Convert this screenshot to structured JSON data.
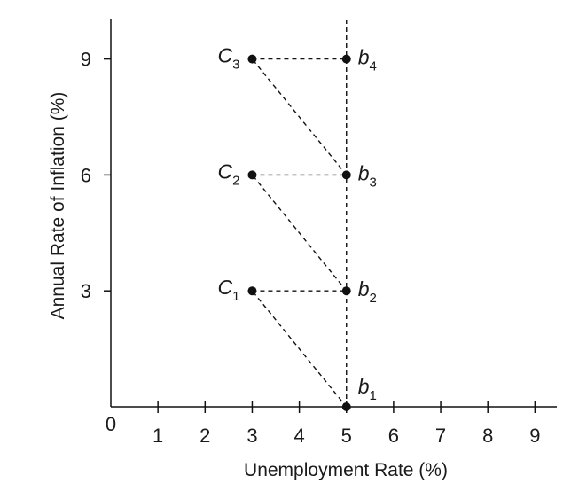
{
  "chart_data": {
    "type": "scatter",
    "xlabel": "Unemployment Rate (%)",
    "ylabel": "Annual Rate of Inflation (%)",
    "xlim": [
      0,
      9.5
    ],
    "ylim": [
      0,
      10
    ],
    "x_ticks": [
      1,
      2,
      3,
      4,
      5,
      6,
      7,
      8,
      9
    ],
    "y_ticks": [
      3,
      6,
      9
    ],
    "origin_label": "0",
    "grid": false,
    "points": [
      {
        "id": "b1",
        "letter": "b",
        "sub": "1",
        "x": 5,
        "y": 0,
        "label_side": "right-up"
      },
      {
        "id": "C1",
        "letter": "C",
        "sub": "1",
        "x": 3,
        "y": 3,
        "label_side": "left"
      },
      {
        "id": "b2",
        "letter": "b",
        "sub": "2",
        "x": 5,
        "y": 3,
        "label_side": "right"
      },
      {
        "id": "C2",
        "letter": "C",
        "sub": "2",
        "x": 3,
        "y": 6,
        "label_side": "left"
      },
      {
        "id": "b3",
        "letter": "b",
        "sub": "3",
        "x": 5,
        "y": 6,
        "label_side": "right"
      },
      {
        "id": "C3",
        "letter": "C",
        "sub": "3",
        "x": 3,
        "y": 9,
        "label_side": "left"
      },
      {
        "id": "b4",
        "letter": "b",
        "sub": "4",
        "x": 5,
        "y": 9,
        "label_side": "right"
      }
    ],
    "dashed_segments": [
      {
        "from": "b1",
        "to": "C1"
      },
      {
        "from": "C1",
        "to": "b2"
      },
      {
        "from": "b2",
        "to": "C2"
      },
      {
        "from": "C2",
        "to": "b3"
      },
      {
        "from": "b3",
        "to": "C3"
      },
      {
        "from": "C3",
        "to": "b4"
      }
    ],
    "vertical_dashed_line": {
      "x": 5,
      "y_from": 0,
      "y_to": 10
    }
  }
}
